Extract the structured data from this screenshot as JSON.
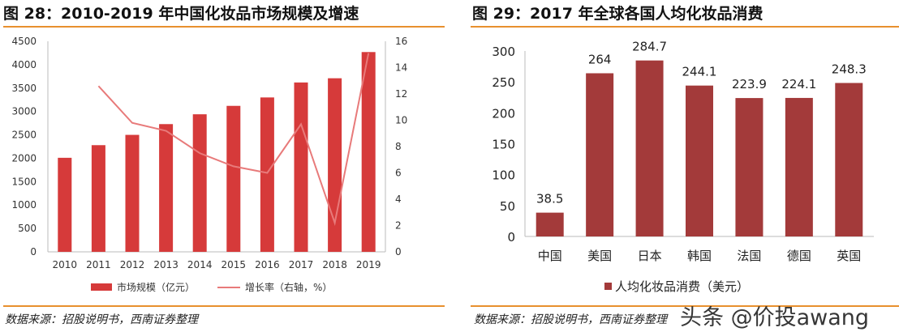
{
  "left": {
    "title": "图 28：2010-2019 年中国化妆品市场规模及增速",
    "source": "数据来源：招股说明书，西南证券整理"
  },
  "right": {
    "title": "图 29：2017 年全球各国人均化妆品消费",
    "source": "数据来源：招股说明书，西南证券整理"
  },
  "watermark": "头条 @价投awang",
  "chart_data": [
    {
      "type": "bar+line",
      "categories": [
        "2010",
        "2011",
        "2012",
        "2013",
        "2014",
        "2015",
        "2016",
        "2017",
        "2018",
        "2019"
      ],
      "series": [
        {
          "name": "市场规模（亿元）",
          "type": "bar",
          "axis": "left",
          "color": "#d63a3a",
          "values": [
            2010,
            2280,
            2500,
            2730,
            2940,
            3120,
            3300,
            3620,
            3710,
            4270
          ]
        },
        {
          "name": "增长率（右轴，%）",
          "type": "line",
          "axis": "right",
          "color": "#e87a7a",
          "values": [
            null,
            12.6,
            9.8,
            9.2,
            7.5,
            6.5,
            6.0,
            9.7,
            2.2,
            15.1
          ]
        }
      ],
      "ylim": [
        0,
        4500
      ],
      "yticks": [
        0,
        500,
        1000,
        1500,
        2000,
        2500,
        3000,
        3500,
        4000,
        4500
      ],
      "y2lim": [
        0,
        16
      ],
      "y2ticks": [
        0,
        2,
        4,
        6,
        8,
        10,
        12,
        14,
        16
      ],
      "grid": false,
      "legend": "bottom"
    },
    {
      "type": "bar",
      "categories": [
        "中国",
        "美国",
        "日本",
        "韩国",
        "法国",
        "德国",
        "英国"
      ],
      "series": [
        {
          "name": "人均化妆品消费（美元）",
          "color": "#a33a3a",
          "values": [
            38.5,
            264,
            284.7,
            244.1,
            223.9,
            224.1,
            248.3
          ],
          "labels": [
            "38.5",
            "264",
            "284.7",
            "244.1",
            "223.9",
            "224.1",
            "248.3"
          ]
        }
      ],
      "ylim": [
        0,
        300
      ],
      "yticks": [
        0,
        50,
        100,
        150,
        200,
        250,
        300
      ],
      "grid": false,
      "legend": "bottom"
    }
  ]
}
